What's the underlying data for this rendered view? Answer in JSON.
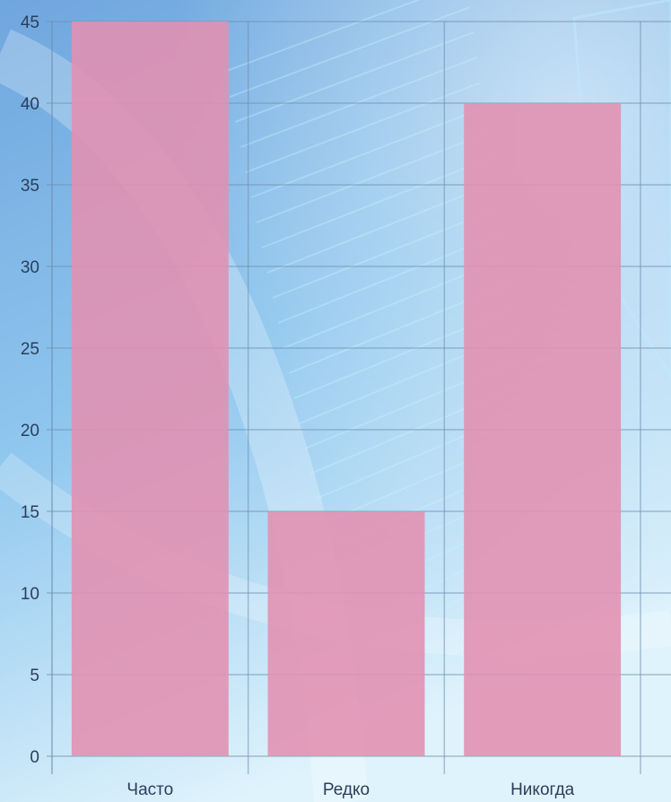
{
  "chart_data": {
    "type": "bar",
    "title": "",
    "xlabel": "",
    "ylabel": "",
    "categories": [
      "Часто",
      "Редко",
      "Никогда"
    ],
    "series": [
      {
        "values": [
          45,
          15,
          40
        ],
        "color": "#e28fb0"
      }
    ],
    "ylim": [
      0,
      45
    ],
    "yticks": [
      0,
      5,
      10,
      15,
      20,
      25,
      30,
      35,
      40,
      45
    ],
    "grid": true,
    "legend": "none"
  },
  "colors": {
    "background_top": "#7fb2e6",
    "background_bottom": "#d9f0fb",
    "bar": "#e28fb0",
    "gridline": "#6f8fae",
    "axis_text": "#2c3e5a"
  }
}
